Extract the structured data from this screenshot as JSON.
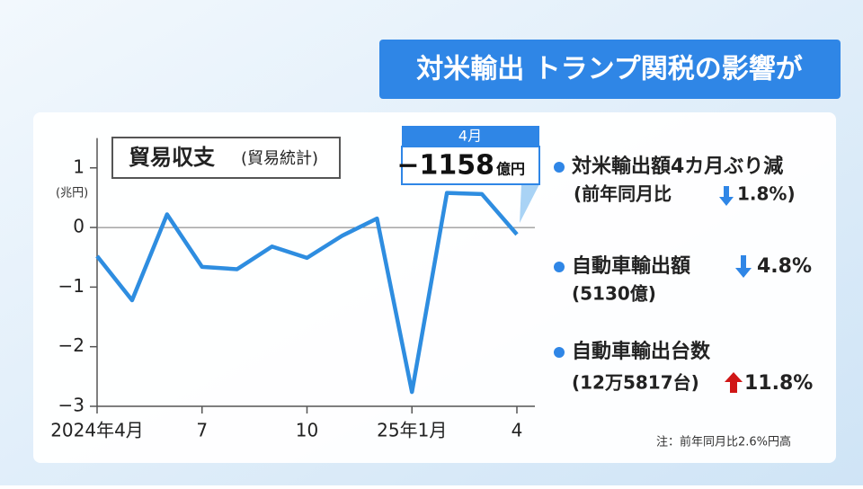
{
  "header": {
    "title": "対米輸出 トランプ関税の影響が"
  },
  "chart_data": {
    "type": "line",
    "title": "貿易収支",
    "subtitle": "(貿易統計)",
    "y_unit": "(兆円)",
    "categories": [
      "2024年4月",
      null,
      null,
      "7",
      null,
      null,
      "10",
      null,
      null,
      "25年1月",
      null,
      null,
      "4"
    ],
    "series": [
      {
        "name": "貿易収支",
        "color": "#2e8de0",
        "values": [
          -0.48,
          -1.22,
          0.22,
          -0.66,
          -0.7,
          -0.32,
          -0.51,
          -0.14,
          0.15,
          -2.76,
          0.58,
          0.56,
          -0.1158
        ]
      }
    ],
    "ylim": [
      -3,
      1.5
    ],
    "yticks": [
      {
        "value": -3,
        "label": "−3"
      },
      {
        "value": -2,
        "label": "−2"
      },
      {
        "value": -1,
        "label": "−1"
      },
      0,
      1
    ],
    "callout": {
      "month": "4月",
      "amount": "−1158",
      "unit": "億円"
    }
  },
  "notes": [
    {
      "title": "対米輸出額4カ月ぶり減",
      "detail": "(前年同月比",
      "change": "1.8%)"
    },
    {
      "title": "自動車輸出額",
      "change": "4.8%",
      "detail": "(5130億)"
    },
    {
      "title": "自動車輸出台数",
      "detail": "(12万5817台)",
      "change": "11.8%"
    }
  ],
  "footnote": "注：前年同月比2.6%円高"
}
